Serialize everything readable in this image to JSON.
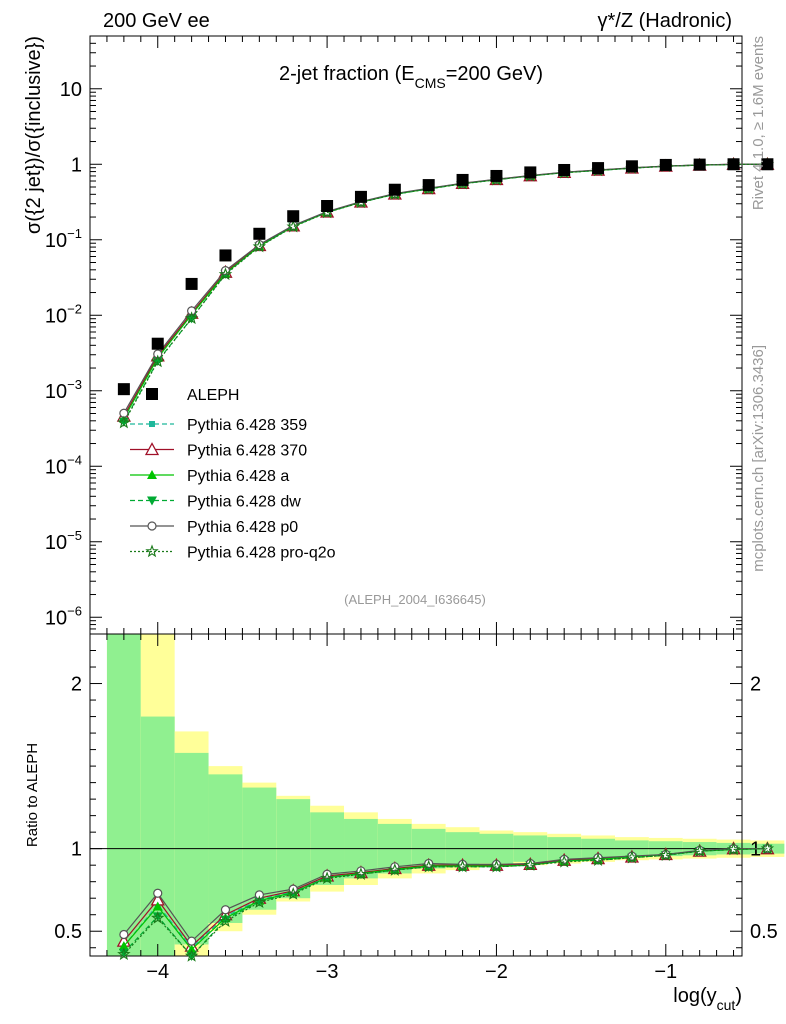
{
  "header": {
    "left": "200 GeV ee",
    "right": "γ*/Z (Hadronic)"
  },
  "side": {
    "rivet": "Rivet 4.1.0, ≥ 1.6M events",
    "mcplots": "mcplots.cern.ch [arXiv:1306.3436]"
  },
  "chart_data": {
    "type": "scatter",
    "title_main": "2-jet fraction (E",
    "title_sub": "CMS",
    "title_tail": "=200 GeV)",
    "analysis_label": "(ALEPH_2004_I636645)",
    "ylabel": "σ({2 jet})/σ({inclusive})",
    "ratio_ylabel": "Ratio to ALEPH",
    "xlabel_main": "log(y",
    "xlabel_sub": "cut",
    "xlabel_tail": ")",
    "xlim": [
      -4.4,
      -0.55
    ],
    "ylim": [
      6e-07,
      50
    ],
    "ratio_ylim": [
      0.35,
      2.3
    ],
    "x_ticks": [
      {
        "v": -4,
        "label": "−4"
      },
      {
        "v": -3,
        "label": "−3"
      },
      {
        "v": -2,
        "label": "−2"
      },
      {
        "v": -1,
        "label": "−1"
      }
    ],
    "y_ticks": [
      {
        "v": 1e-06,
        "base": "10",
        "exp": "−6"
      },
      {
        "v": 1e-05,
        "base": "10",
        "exp": "−5"
      },
      {
        "v": 0.0001,
        "base": "10",
        "exp": "−4"
      },
      {
        "v": 0.001,
        "base": "10",
        "exp": "−3"
      },
      {
        "v": 0.01,
        "base": "10",
        "exp": "−2"
      },
      {
        "v": 0.1,
        "base": "10",
        "exp": "−1"
      },
      {
        "v": 1,
        "base": "1",
        "exp": ""
      },
      {
        "v": 10,
        "base": "10",
        "exp": ""
      }
    ],
    "ratio_ticks": [
      {
        "v": 0.5,
        "label": "0.5"
      },
      {
        "v": 1,
        "label": "1"
      },
      {
        "v": 2,
        "label": "2"
      }
    ],
    "x": [
      -4.2,
      -4.0,
      -3.8,
      -3.6,
      -3.4,
      -3.2,
      -3.0,
      -2.8,
      -2.6,
      -2.4,
      -2.2,
      -2.0,
      -1.8,
      -1.6,
      -1.4,
      -1.2,
      -1.0,
      -0.8,
      -0.6,
      -0.4
    ],
    "data": {
      "name": "ALEPH",
      "values": [
        0.00105,
        0.0042,
        0.026,
        0.062,
        0.12,
        0.205,
        0.28,
        0.37,
        0.46,
        0.53,
        0.62,
        0.7,
        0.78,
        0.84,
        0.89,
        0.94,
        0.98,
        0.99,
        1.0,
        1.0
      ],
      "band_inner": [
        [
          0.3,
          2.3
        ],
        [
          0.3,
          1.8
        ],
        [
          0.42,
          1.58
        ],
        [
          0.55,
          1.45
        ],
        [
          0.63,
          1.37
        ],
        [
          0.7,
          1.3
        ],
        [
          0.78,
          1.22
        ],
        [
          0.82,
          1.18
        ],
        [
          0.85,
          1.15
        ],
        [
          0.88,
          1.12
        ],
        [
          0.9,
          1.1
        ],
        [
          0.91,
          1.09
        ],
        [
          0.92,
          1.08
        ],
        [
          0.93,
          1.07
        ],
        [
          0.94,
          1.06
        ],
        [
          0.95,
          1.05
        ],
        [
          0.955,
          1.045
        ],
        [
          0.96,
          1.04
        ],
        [
          0.965,
          1.035
        ],
        [
          0.97,
          1.03
        ]
      ],
      "band_outer": [
        [
          0.3,
          2.3
        ],
        [
          0.3,
          2.3
        ],
        [
          0.3,
          1.71
        ],
        [
          0.5,
          1.5
        ],
        [
          0.6,
          1.4
        ],
        [
          0.68,
          1.32
        ],
        [
          0.74,
          1.26
        ],
        [
          0.78,
          1.22
        ],
        [
          0.82,
          1.18
        ],
        [
          0.85,
          1.15
        ],
        [
          0.87,
          1.13
        ],
        [
          0.89,
          1.11
        ],
        [
          0.9,
          1.1
        ],
        [
          0.91,
          1.09
        ],
        [
          0.92,
          1.08
        ],
        [
          0.93,
          1.07
        ],
        [
          0.935,
          1.065
        ],
        [
          0.94,
          1.06
        ],
        [
          0.945,
          1.055
        ],
        [
          0.95,
          1.05
        ]
      ],
      "color_inner": "#90f090",
      "color_outer": "#ffff99"
    },
    "series": [
      {
        "name": "Pythia 6.428 359",
        "color": "#1fb89b",
        "marker": "square-small",
        "dash": "5,3",
        "ratio": [
          0.41,
          0.66,
          0.4,
          0.59,
          0.69,
          0.74,
          0.83,
          0.85,
          0.875,
          0.895,
          0.895,
          0.895,
          0.9,
          0.925,
          0.935,
          0.95,
          0.965,
          0.985,
          0.995,
          1.0
        ]
      },
      {
        "name": "Pythia 6.428 370",
        "color": "#a01028",
        "marker": "triangle-open",
        "dash": "",
        "ratio": [
          0.44,
          0.69,
          0.41,
          0.6,
          0.7,
          0.745,
          0.835,
          0.855,
          0.88,
          0.9,
          0.9,
          0.9,
          0.905,
          0.93,
          0.94,
          0.95,
          0.965,
          0.985,
          1.0,
          1.0
        ]
      },
      {
        "name": "Pythia 6.428 a",
        "color": "#00c400",
        "marker": "triangle-filled",
        "dash": "",
        "ratio": [
          0.41,
          0.65,
          0.39,
          0.58,
          0.685,
          0.735,
          0.825,
          0.85,
          0.875,
          0.895,
          0.895,
          0.895,
          0.9,
          0.925,
          0.935,
          0.95,
          0.965,
          0.985,
          0.995,
          1.0
        ]
      },
      {
        "name": "Pythia 6.428 dw",
        "color": "#00aa33",
        "marker": "triangle-down",
        "dash": "5,3",
        "ratio": [
          0.37,
          0.59,
          0.35,
          0.57,
          0.68,
          0.73,
          0.825,
          0.845,
          0.87,
          0.89,
          0.89,
          0.89,
          0.9,
          0.925,
          0.93,
          0.945,
          0.96,
          0.985,
          0.995,
          1.0
        ]
      },
      {
        "name": "Pythia 6.428 p0",
        "color": "#555555",
        "marker": "circle-open",
        "dash": "",
        "ratio": [
          0.48,
          0.73,
          0.44,
          0.63,
          0.72,
          0.755,
          0.845,
          0.865,
          0.89,
          0.91,
          0.905,
          0.905,
          0.91,
          0.935,
          0.945,
          0.955,
          0.965,
          0.99,
          1.0,
          1.0
        ]
      },
      {
        "name": "Pythia 6.428 pro-q2o",
        "color": "#1a7a1a",
        "marker": "star",
        "dash": "2,2",
        "ratio": [
          0.36,
          0.58,
          0.35,
          0.56,
          0.675,
          0.725,
          0.82,
          0.845,
          0.87,
          0.89,
          0.89,
          0.89,
          0.9,
          0.92,
          0.93,
          0.945,
          0.96,
          0.985,
          0.995,
          1.0
        ]
      }
    ],
    "legend_position": "lower-left"
  }
}
